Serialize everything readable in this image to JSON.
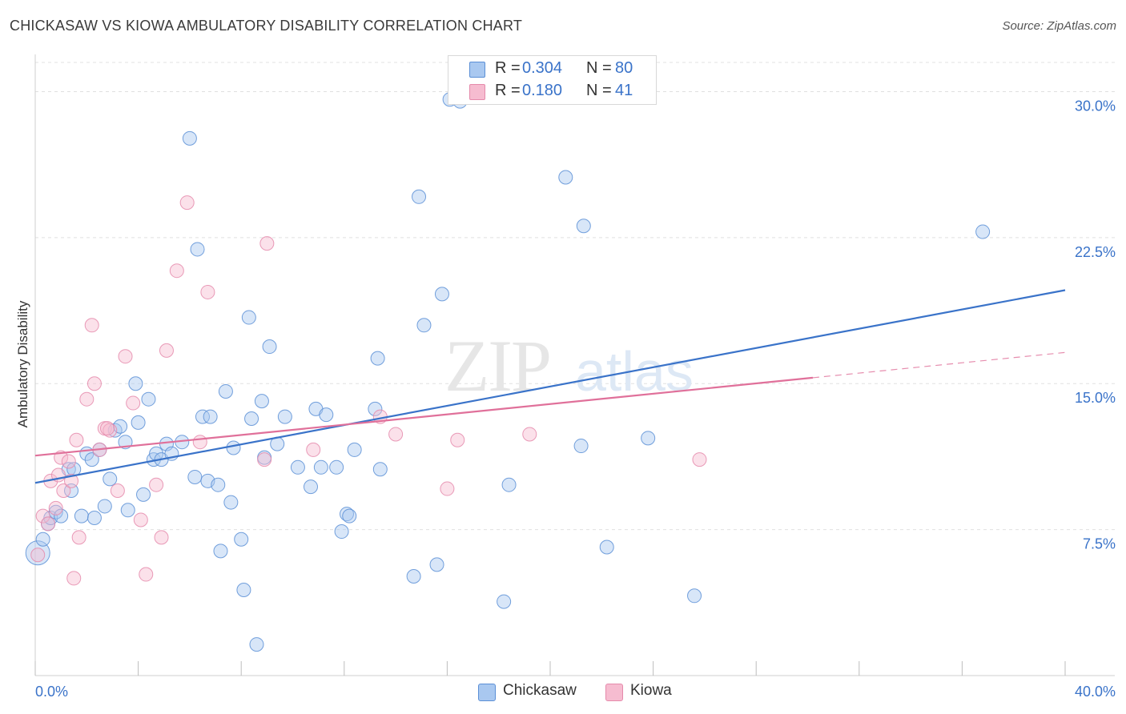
{
  "title": "CHICKASAW VS KIOWA AMBULATORY DISABILITY CORRELATION CHART",
  "source": "Source: ZipAtlas.com",
  "watermark": "ZIPatlas",
  "legend_top": [
    {
      "r_label": "R =",
      "r_value": "0.304",
      "n_label": "N =",
      "n_value": "80"
    },
    {
      "r_label": "R =",
      "r_value": "0.180",
      "n_label": "N =",
      "n_value": "41"
    }
  ],
  "legend_bottom": [
    "Chickasaw",
    "Kiowa"
  ],
  "colors": {
    "chickasaw_fill": "#a9c8f0",
    "chickasaw_stroke": "#5b8fd6",
    "chickasaw_line": "#3a73c9",
    "kiowa_fill": "#f6bcd0",
    "kiowa_stroke": "#e58aab",
    "kiowa_line": "#e0709a",
    "tick_label": "#3a73c9",
    "grid": "#e0e0e0"
  },
  "chart_data": {
    "type": "scatter",
    "title": "CHICKASAW VS KIOWA AMBULATORY DISABILITY CORRELATION CHART",
    "xlabel": "",
    "ylabel": "Ambulatory Disability",
    "xlim": [
      0,
      40
    ],
    "ylim": [
      0,
      31.5
    ],
    "x_tick_labels": [
      "0.0%",
      "40.0%"
    ],
    "y_ticks": [
      7.5,
      15.0,
      22.5,
      30.0
    ],
    "y_tick_labels": [
      "7.5%",
      "15.0%",
      "22.5%",
      "30.0%"
    ],
    "grid": true,
    "series": [
      {
        "name": "Chickasaw",
        "r": 0.304,
        "n": 80,
        "trend": {
          "x": [
            0,
            40
          ],
          "y": [
            9.9,
            19.8
          ],
          "dashed_from": null
        },
        "points": [
          [
            0.1,
            6.3
          ],
          [
            0.3,
            7.0
          ],
          [
            0.5,
            7.8
          ],
          [
            0.6,
            8.1
          ],
          [
            0.8,
            8.4
          ],
          [
            1.0,
            8.2
          ],
          [
            1.3,
            10.6
          ],
          [
            1.4,
            9.5
          ],
          [
            1.5,
            10.6
          ],
          [
            1.8,
            8.2
          ],
          [
            2.0,
            11.4
          ],
          [
            2.2,
            11.1
          ],
          [
            2.3,
            8.1
          ],
          [
            2.5,
            11.6
          ],
          [
            2.7,
            8.7
          ],
          [
            2.9,
            10.1
          ],
          [
            3.1,
            12.6
          ],
          [
            3.3,
            12.8
          ],
          [
            3.5,
            12.0
          ],
          [
            3.6,
            8.5
          ],
          [
            3.9,
            15.0
          ],
          [
            4.0,
            13.0
          ],
          [
            4.2,
            9.3
          ],
          [
            4.4,
            14.2
          ],
          [
            4.6,
            11.1
          ],
          [
            4.7,
            11.4
          ],
          [
            4.9,
            11.1
          ],
          [
            5.1,
            11.9
          ],
          [
            5.3,
            11.4
          ],
          [
            5.7,
            12.0
          ],
          [
            6.0,
            27.6
          ],
          [
            6.2,
            10.2
          ],
          [
            6.3,
            21.9
          ],
          [
            6.5,
            13.3
          ],
          [
            6.7,
            10.0
          ],
          [
            6.8,
            13.3
          ],
          [
            7.1,
            9.8
          ],
          [
            7.2,
            6.4
          ],
          [
            7.4,
            14.6
          ],
          [
            7.6,
            8.9
          ],
          [
            7.7,
            11.7
          ],
          [
            8.0,
            7.0
          ],
          [
            8.1,
            4.4
          ],
          [
            8.3,
            18.4
          ],
          [
            8.4,
            13.2
          ],
          [
            8.6,
            1.6
          ],
          [
            8.8,
            14.1
          ],
          [
            8.9,
            11.2
          ],
          [
            9.1,
            16.9
          ],
          [
            9.4,
            11.9
          ],
          [
            9.7,
            13.3
          ],
          [
            10.2,
            10.7
          ],
          [
            10.7,
            9.7
          ],
          [
            10.9,
            13.7
          ],
          [
            11.1,
            10.7
          ],
          [
            11.3,
            13.4
          ],
          [
            11.7,
            10.7
          ],
          [
            11.9,
            7.4
          ],
          [
            12.1,
            8.3
          ],
          [
            12.2,
            8.2
          ],
          [
            12.4,
            11.6
          ],
          [
            13.2,
            13.7
          ],
          [
            13.3,
            16.3
          ],
          [
            13.4,
            10.6
          ],
          [
            14.7,
            5.1
          ],
          [
            14.9,
            24.6
          ],
          [
            15.1,
            18.0
          ],
          [
            15.6,
            5.7
          ],
          [
            15.8,
            19.6
          ],
          [
            16.1,
            29.6
          ],
          [
            18.2,
            3.8
          ],
          [
            18.4,
            9.8
          ],
          [
            20.6,
            25.6
          ],
          [
            21.2,
            11.8
          ],
          [
            21.3,
            23.1
          ],
          [
            22.2,
            6.6
          ],
          [
            23.8,
            12.2
          ],
          [
            25.6,
            4.1
          ],
          [
            36.8,
            22.8
          ],
          [
            16.5,
            29.5
          ]
        ]
      },
      {
        "name": "Kiowa",
        "r": 0.18,
        "n": 41,
        "trend": {
          "x": [
            0,
            40
          ],
          "y": [
            11.3,
            16.6
          ],
          "dashed_from": 30.2
        },
        "points": [
          [
            0.1,
            6.2
          ],
          [
            0.3,
            8.2
          ],
          [
            0.5,
            7.8
          ],
          [
            0.6,
            10.0
          ],
          [
            0.8,
            8.6
          ],
          [
            0.9,
            10.3
          ],
          [
            1.0,
            11.2
          ],
          [
            1.1,
            9.5
          ],
          [
            1.3,
            11.0
          ],
          [
            1.4,
            10.0
          ],
          [
            1.5,
            5.0
          ],
          [
            1.6,
            12.1
          ],
          [
            1.7,
            7.1
          ],
          [
            2.0,
            14.2
          ],
          [
            2.2,
            18.0
          ],
          [
            2.3,
            15.0
          ],
          [
            2.5,
            11.6
          ],
          [
            2.7,
            12.7
          ],
          [
            2.9,
            12.6
          ],
          [
            3.2,
            9.5
          ],
          [
            3.5,
            16.4
          ],
          [
            3.8,
            14.0
          ],
          [
            4.3,
            5.2
          ],
          [
            4.7,
            9.8
          ],
          [
            4.9,
            7.1
          ],
          [
            5.1,
            16.7
          ],
          [
            5.5,
            20.8
          ],
          [
            5.9,
            24.3
          ],
          [
            6.4,
            12.0
          ],
          [
            6.7,
            19.7
          ],
          [
            8.9,
            11.1
          ],
          [
            9.0,
            22.2
          ],
          [
            10.8,
            11.6
          ],
          [
            13.4,
            13.3
          ],
          [
            14.0,
            12.4
          ],
          [
            16.0,
            9.6
          ],
          [
            16.4,
            12.1
          ],
          [
            19.2,
            12.4
          ],
          [
            25.8,
            11.1
          ],
          [
            2.8,
            12.7
          ],
          [
            4.1,
            8.0
          ]
        ]
      }
    ]
  }
}
